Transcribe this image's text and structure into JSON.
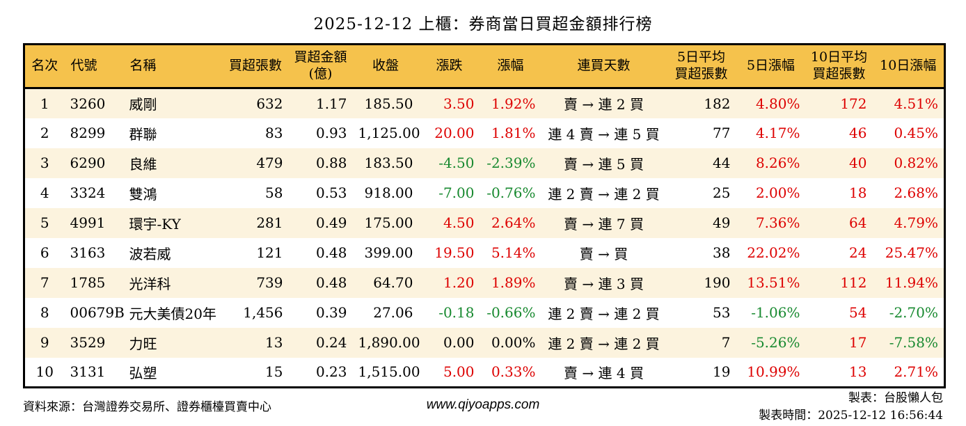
{
  "chart_data": {
    "type": "table",
    "title": "2025-12-12 上櫃：券商當日買超金額排行榜",
    "columns": [
      {
        "key": "rank",
        "label": "名次",
        "label2": "",
        "align": "center",
        "signed": false
      },
      {
        "key": "code",
        "label": "代號",
        "label2": "",
        "align": "left",
        "signed": false
      },
      {
        "key": "name",
        "label": "名稱",
        "label2": "",
        "align": "left",
        "signed": false
      },
      {
        "key": "volume",
        "label": "買超張數",
        "label2": "",
        "align": "right",
        "signed": false
      },
      {
        "key": "amount",
        "label": "買超金額",
        "label2": "(億)",
        "align": "right",
        "signed": false
      },
      {
        "key": "close",
        "label": "收盤",
        "label2": "",
        "align": "right",
        "signed": false
      },
      {
        "key": "change",
        "label": "漲跌",
        "label2": "",
        "align": "right",
        "signed": true
      },
      {
        "key": "change_pct",
        "label": "漲幅",
        "label2": "",
        "align": "right",
        "signed": true
      },
      {
        "key": "streak",
        "label": "連買天數",
        "label2": "",
        "align": "center",
        "signed": false
      },
      {
        "key": "avg5",
        "label": "5日平均",
        "label2": "買超張數",
        "align": "right",
        "signed": false
      },
      {
        "key": "pct5",
        "label": "5日漲幅",
        "label2": "",
        "align": "right",
        "signed": true
      },
      {
        "key": "avg10",
        "label": "10日平均",
        "label2": "買超張數",
        "align": "right",
        "signed": true
      },
      {
        "key": "pct10",
        "label": "10日漲幅",
        "label2": "",
        "align": "right",
        "signed": true
      }
    ],
    "rows": [
      {
        "rank": "1",
        "code": "3260",
        "name": "威剛",
        "volume": "632",
        "amount": "1.17",
        "close": "185.50",
        "change": "3.50",
        "change_pct": "1.92%",
        "streak": "賣 → 連 2 買",
        "avg5": "182",
        "pct5": "4.80%",
        "avg10": "172",
        "pct10": "4.51%"
      },
      {
        "rank": "2",
        "code": "8299",
        "name": "群聯",
        "volume": "83",
        "amount": "0.93",
        "close": "1,125.00",
        "change": "20.00",
        "change_pct": "1.81%",
        "streak": "連 4 賣 → 連 5 買",
        "avg5": "77",
        "pct5": "4.17%",
        "avg10": "46",
        "pct10": "0.45%"
      },
      {
        "rank": "3",
        "code": "6290",
        "name": "良維",
        "volume": "479",
        "amount": "0.88",
        "close": "183.50",
        "change": "-4.50",
        "change_pct": "-2.39%",
        "streak": "賣 → 連 5 買",
        "avg5": "44",
        "pct5": "8.26%",
        "avg10": "40",
        "pct10": "0.82%"
      },
      {
        "rank": "4",
        "code": "3324",
        "name": "雙鴻",
        "volume": "58",
        "amount": "0.53",
        "close": "918.00",
        "change": "-7.00",
        "change_pct": "-0.76%",
        "streak": "連 2 賣 → 連 2 買",
        "avg5": "25",
        "pct5": "2.00%",
        "avg10": "18",
        "pct10": "2.68%"
      },
      {
        "rank": "5",
        "code": "4991",
        "name": "環宇-KY",
        "volume": "281",
        "amount": "0.49",
        "close": "175.00",
        "change": "4.50",
        "change_pct": "2.64%",
        "streak": "賣 → 連 7 買",
        "avg5": "49",
        "pct5": "7.36%",
        "avg10": "64",
        "pct10": "4.79%"
      },
      {
        "rank": "6",
        "code": "3163",
        "name": "波若威",
        "volume": "121",
        "amount": "0.48",
        "close": "399.00",
        "change": "19.50",
        "change_pct": "5.14%",
        "streak": "賣 → 買",
        "avg5": "38",
        "pct5": "22.02%",
        "avg10": "24",
        "pct10": "25.47%"
      },
      {
        "rank": "7",
        "code": "1785",
        "name": "光洋科",
        "volume": "739",
        "amount": "0.48",
        "close": "64.70",
        "change": "1.20",
        "change_pct": "1.89%",
        "streak": "賣 → 連 3 買",
        "avg5": "190",
        "pct5": "13.51%",
        "avg10": "112",
        "pct10": "11.94%"
      },
      {
        "rank": "8",
        "code": "00679B",
        "name": "元大美債20年",
        "volume": "1,456",
        "amount": "0.39",
        "close": "27.06",
        "change": "-0.18",
        "change_pct": "-0.66%",
        "streak": "連 2 賣 → 連 2 買",
        "avg5": "53",
        "pct5": "-1.06%",
        "avg10": "54",
        "pct10": "-2.70%"
      },
      {
        "rank": "9",
        "code": "3529",
        "name": "力旺",
        "volume": "13",
        "amount": "0.24",
        "close": "1,890.00",
        "change": "0.00",
        "change_pct": "0.00%",
        "streak": "連 2 賣 → 連 2 買",
        "avg5": "7",
        "pct5": "-5.26%",
        "avg10": "17",
        "pct10": "-7.58%"
      },
      {
        "rank": "10",
        "code": "3131",
        "name": "弘塑",
        "volume": "15",
        "amount": "0.23",
        "close": "1,515.00",
        "change": "5.00",
        "change_pct": "0.33%",
        "streak": "賣 → 連 4 買",
        "avg5": "19",
        "pct5": "10.99%",
        "avg10": "13",
        "pct10": "2.71%"
      }
    ]
  },
  "footer": {
    "source": "資料來源：台灣證券交易所、證券櫃檯買賣中心",
    "website": "www.qiyoapps.com",
    "made_by": "製表：台股懶人包",
    "made_time": "製表時間：2025-12-12 16:56:44"
  },
  "palette": {
    "header_background": "#f5c24c",
    "row_alternate": "#fcf3de",
    "up_color": "#dd0000",
    "down_color": "#17892f"
  }
}
